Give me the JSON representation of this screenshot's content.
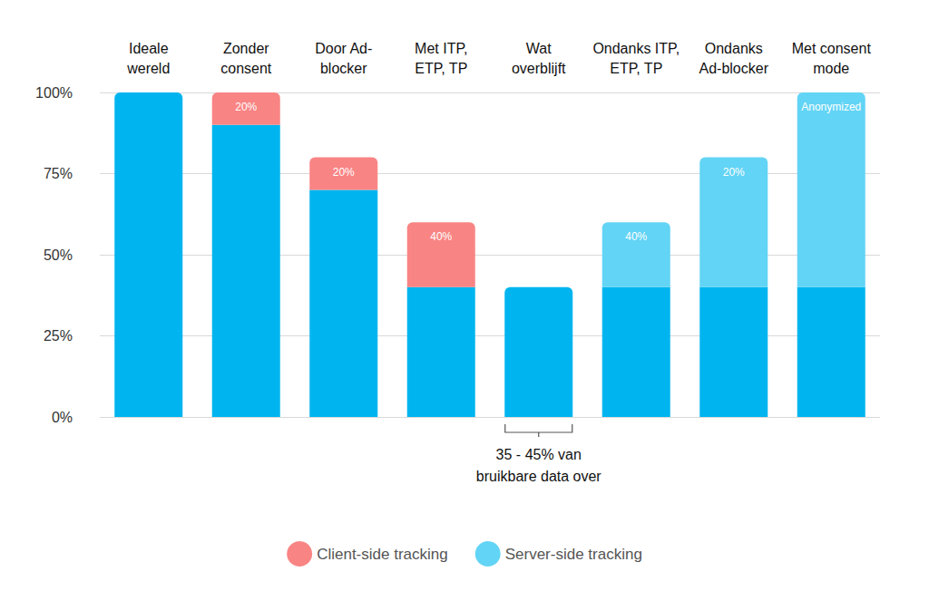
{
  "chart_data": {
    "type": "bar",
    "categories": [
      "Ideale\nwereld",
      "Zonder\nconsent",
      "Door Ad-\nblocker",
      "Met ITP,\nETP, TP",
      "Wat\noverblijft",
      "Ondanks ITP,\nETP, TP",
      "Ondanks\nAd-blocker",
      "Met consent\nmode"
    ],
    "series": [
      {
        "color": "#00b5ef",
        "values": [
          100,
          90,
          70,
          40,
          40,
          40,
          40,
          40
        ]
      },
      {
        "name": "Client-side tracking",
        "color": "#f98484",
        "values": [
          null,
          10,
          10,
          20,
          null,
          null,
          null,
          null
        ]
      },
      {
        "name": "Server-side tracking",
        "color": "#62d4f5",
        "values": [
          null,
          null,
          null,
          null,
          null,
          20,
          40,
          60
        ]
      }
    ],
    "annotations": [
      {
        "category": "Zonder\nconsent",
        "series": "Client-side tracking",
        "text": "20%"
      },
      {
        "category": "Door Ad-\nblocker",
        "series": "Client-side tracking",
        "text": "20%"
      },
      {
        "category": "Met ITP,\nETP, TP",
        "series": "Client-side tracking",
        "text": "40%"
      },
      {
        "category": "Ondanks ITP,\nETP, TP",
        "series": "Server-side tracking",
        "text": "40%"
      },
      {
        "category": "Ondanks\nAd-blocker",
        "series": "Server-side tracking",
        "text": "20%"
      },
      {
        "category": "Met consent\nmode",
        "series": "Server-side tracking",
        "text": "Anonymized"
      }
    ],
    "bracket": {
      "category": "Wat\noverblijft",
      "text": "35 - 45% van\nbruikbare data over"
    },
    "ylim": [
      0,
      100
    ],
    "yticks": [
      {
        "value": 0,
        "label": "0%"
      },
      {
        "value": 25,
        "label": "25%"
      },
      {
        "value": 50,
        "label": "50%"
      },
      {
        "value": 75,
        "label": "75%"
      },
      {
        "value": 100,
        "label": "100%"
      }
    ],
    "stacked": true,
    "grid": true,
    "legend": "bottom",
    "data_labels": false
  }
}
